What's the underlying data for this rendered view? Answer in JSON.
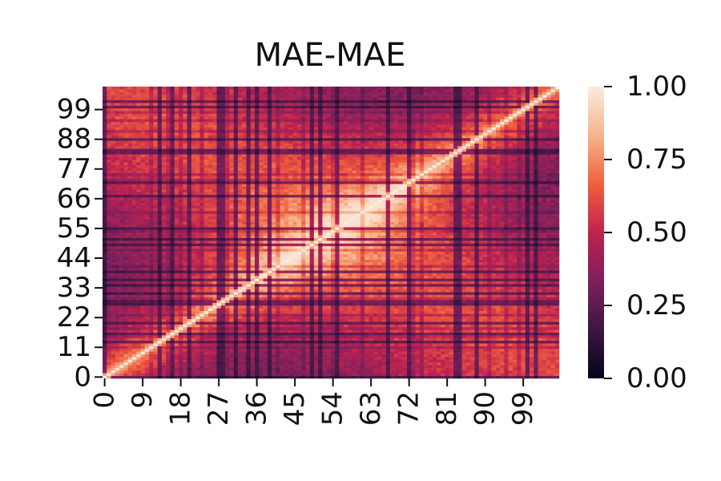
{
  "chart_data": {
    "type": "heatmap",
    "title": "MAE-MAE",
    "xlabel": "",
    "ylabel": "",
    "n": 108,
    "x_tick_labels": [
      "0",
      "9",
      "18",
      "27",
      "36",
      "45",
      "54",
      "63",
      "72",
      "81",
      "90",
      "99"
    ],
    "y_tick_labels": [
      "0",
      "11",
      "22",
      "33",
      "44",
      "55",
      "66",
      "77",
      "88",
      "99"
    ],
    "y_origin": "bottom",
    "vmin": 0.0,
    "vmax": 1.0,
    "colorbar_ticks": [
      "0.00",
      "0.25",
      "0.50",
      "0.75",
      "1.00"
    ],
    "colormap": "rocket",
    "colormap_stops": [
      "#03051a",
      "#3d1642",
      "#7d1f5b",
      "#c0224f",
      "#f0603c",
      "#f6b48f",
      "#faebdd"
    ],
    "diagonal_value": 1.0,
    "pattern": "symmetric similarity matrix; values highest near the diagonal and within the central block (about 36-72), lower toward the far corners"
  }
}
